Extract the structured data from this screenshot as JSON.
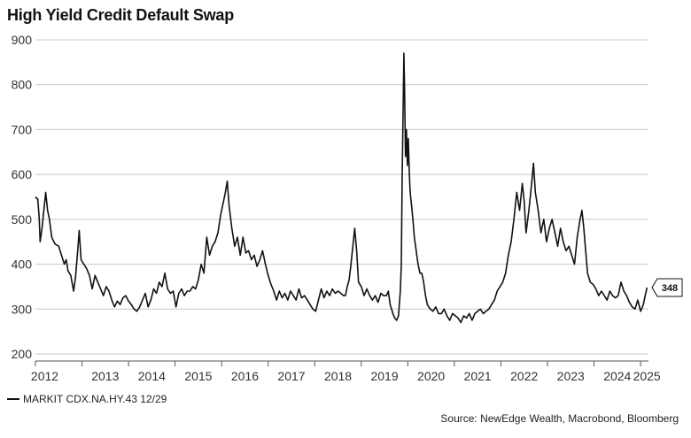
{
  "chart_data": {
    "type": "line",
    "title": "High Yield Credit Default Swap",
    "ylim": [
      200,
      900
    ],
    "yticks": [
      200,
      300,
      400,
      500,
      600,
      700,
      800,
      900
    ],
    "xlim": [
      2012.0,
      2025.17
    ],
    "xtick_labels": [
      "2012",
      "2013",
      "2014",
      "2015",
      "2016",
      "2017",
      "2018",
      "2019",
      "2020",
      "2021",
      "2022",
      "2023",
      "2024",
      "2025"
    ],
    "grid": true,
    "last_value_label": "348",
    "series": [
      {
        "name": "MARKIT CDX.NA.HY.43 12/29",
        "color": "#111111",
        "points": [
          [
            2012.0,
            550
          ],
          [
            2012.05,
            545
          ],
          [
            2012.08,
            505
          ],
          [
            2012.1,
            450
          ],
          [
            2012.14,
            480
          ],
          [
            2012.18,
            520
          ],
          [
            2012.22,
            560
          ],
          [
            2012.26,
            520
          ],
          [
            2012.3,
            500
          ],
          [
            2012.35,
            460
          ],
          [
            2012.42,
            445
          ],
          [
            2012.5,
            440
          ],
          [
            2012.56,
            420
          ],
          [
            2012.62,
            400
          ],
          [
            2012.66,
            410
          ],
          [
            2012.7,
            385
          ],
          [
            2012.76,
            375
          ],
          [
            2012.82,
            340
          ],
          [
            2012.86,
            370
          ],
          [
            2012.9,
            420
          ],
          [
            2012.94,
            475
          ],
          [
            2012.98,
            410
          ],
          [
            2013.04,
            400
          ],
          [
            2013.1,
            390
          ],
          [
            2013.16,
            375
          ],
          [
            2013.22,
            345
          ],
          [
            2013.28,
            375
          ],
          [
            2013.34,
            360
          ],
          [
            2013.4,
            345
          ],
          [
            2013.46,
            330
          ],
          [
            2013.52,
            350
          ],
          [
            2013.58,
            340
          ],
          [
            2013.64,
            320
          ],
          [
            2013.7,
            305
          ],
          [
            2013.76,
            318
          ],
          [
            2013.82,
            310
          ],
          [
            2013.88,
            325
          ],
          [
            2013.94,
            330
          ],
          [
            2014.0,
            318
          ],
          [
            2014.06,
            310
          ],
          [
            2014.12,
            300
          ],
          [
            2014.18,
            295
          ],
          [
            2014.24,
            305
          ],
          [
            2014.3,
            320
          ],
          [
            2014.36,
            335
          ],
          [
            2014.42,
            305
          ],
          [
            2014.48,
            320
          ],
          [
            2014.54,
            345
          ],
          [
            2014.6,
            335
          ],
          [
            2014.66,
            360
          ],
          [
            2014.72,
            350
          ],
          [
            2014.78,
            380
          ],
          [
            2014.84,
            345
          ],
          [
            2014.9,
            335
          ],
          [
            2014.96,
            340
          ],
          [
            2015.02,
            305
          ],
          [
            2015.08,
            335
          ],
          [
            2015.14,
            345
          ],
          [
            2015.2,
            330
          ],
          [
            2015.26,
            340
          ],
          [
            2015.32,
            340
          ],
          [
            2015.38,
            350
          ],
          [
            2015.44,
            345
          ],
          [
            2015.5,
            365
          ],
          [
            2015.56,
            400
          ],
          [
            2015.62,
            380
          ],
          [
            2015.68,
            460
          ],
          [
            2015.74,
            420
          ],
          [
            2015.8,
            440
          ],
          [
            2015.86,
            450
          ],
          [
            2015.92,
            470
          ],
          [
            2015.98,
            510
          ],
          [
            2016.04,
            540
          ],
          [
            2016.08,
            560
          ],
          [
            2016.12,
            585
          ],
          [
            2016.16,
            530
          ],
          [
            2016.22,
            480
          ],
          [
            2016.28,
            440
          ],
          [
            2016.34,
            460
          ],
          [
            2016.4,
            420
          ],
          [
            2016.46,
            460
          ],
          [
            2016.52,
            425
          ],
          [
            2016.58,
            430
          ],
          [
            2016.64,
            410
          ],
          [
            2016.7,
            420
          ],
          [
            2016.76,
            395
          ],
          [
            2016.82,
            410
          ],
          [
            2016.88,
            430
          ],
          [
            2016.94,
            400
          ],
          [
            2017.0,
            375
          ],
          [
            2017.06,
            355
          ],
          [
            2017.12,
            340
          ],
          [
            2017.18,
            320
          ],
          [
            2017.24,
            340
          ],
          [
            2017.3,
            325
          ],
          [
            2017.36,
            335
          ],
          [
            2017.42,
            320
          ],
          [
            2017.48,
            340
          ],
          [
            2017.54,
            330
          ],
          [
            2017.6,
            320
          ],
          [
            2017.66,
            345
          ],
          [
            2017.72,
            325
          ],
          [
            2017.78,
            330
          ],
          [
            2017.84,
            320
          ],
          [
            2017.9,
            310
          ],
          [
            2017.96,
            300
          ],
          [
            2018.02,
            295
          ],
          [
            2018.08,
            320
          ],
          [
            2018.14,
            345
          ],
          [
            2018.2,
            325
          ],
          [
            2018.26,
            340
          ],
          [
            2018.32,
            330
          ],
          [
            2018.38,
            345
          ],
          [
            2018.44,
            335
          ],
          [
            2018.5,
            340
          ],
          [
            2018.56,
            335
          ],
          [
            2018.62,
            330
          ],
          [
            2018.66,
            330
          ],
          [
            2018.7,
            350
          ],
          [
            2018.74,
            365
          ],
          [
            2018.78,
            400
          ],
          [
            2018.82,
            440
          ],
          [
            2018.86,
            480
          ],
          [
            2018.9,
            430
          ],
          [
            2018.94,
            360
          ],
          [
            2019.0,
            350
          ],
          [
            2019.06,
            330
          ],
          [
            2019.12,
            345
          ],
          [
            2019.18,
            330
          ],
          [
            2019.24,
            320
          ],
          [
            2019.3,
            330
          ],
          [
            2019.36,
            315
          ],
          [
            2019.42,
            335
          ],
          [
            2019.48,
            330
          ],
          [
            2019.54,
            330
          ],
          [
            2019.58,
            340
          ],
          [
            2019.62,
            310
          ],
          [
            2019.68,
            290
          ],
          [
            2019.72,
            280
          ],
          [
            2019.76,
            275
          ],
          [
            2019.8,
            285
          ],
          [
            2019.84,
            340
          ],
          [
            2019.86,
            400
          ],
          [
            2019.88,
            600
          ],
          [
            2019.9,
            750
          ],
          [
            2019.915,
            870
          ],
          [
            2019.93,
            790
          ],
          [
            2019.95,
            640
          ],
          [
            2019.97,
            700
          ],
          [
            2019.99,
            620
          ],
          [
            2020.01,
            680
          ],
          [
            2020.03,
            610
          ],
          [
            2020.05,
            560
          ],
          [
            2020.08,
            530
          ],
          [
            2020.11,
            500
          ],
          [
            2020.14,
            460
          ],
          [
            2020.18,
            430
          ],
          [
            2020.22,
            400
          ],
          [
            2020.26,
            380
          ],
          [
            2020.3,
            380
          ],
          [
            2020.34,
            360
          ],
          [
            2020.38,
            330
          ],
          [
            2020.42,
            310
          ],
          [
            2020.48,
            300
          ],
          [
            2020.54,
            295
          ],
          [
            2020.6,
            305
          ],
          [
            2020.66,
            290
          ],
          [
            2020.72,
            290
          ],
          [
            2020.78,
            300
          ],
          [
            2020.84,
            285
          ],
          [
            2020.9,
            275
          ],
          [
            2020.96,
            290
          ],
          [
            2021.02,
            285
          ],
          [
            2021.08,
            280
          ],
          [
            2021.14,
            270
          ],
          [
            2021.2,
            285
          ],
          [
            2021.26,
            280
          ],
          [
            2021.32,
            290
          ],
          [
            2021.38,
            275
          ],
          [
            2021.44,
            290
          ],
          [
            2021.5,
            295
          ],
          [
            2021.56,
            300
          ],
          [
            2021.62,
            290
          ],
          [
            2021.68,
            295
          ],
          [
            2021.74,
            300
          ],
          [
            2021.8,
            310
          ],
          [
            2021.86,
            320
          ],
          [
            2021.92,
            340
          ],
          [
            2021.98,
            350
          ],
          [
            2022.04,
            360
          ],
          [
            2022.1,
            380
          ],
          [
            2022.16,
            420
          ],
          [
            2022.22,
            450
          ],
          [
            2022.28,
            500
          ],
          [
            2022.34,
            560
          ],
          [
            2022.4,
            520
          ],
          [
            2022.46,
            580
          ],
          [
            2022.5,
            540
          ],
          [
            2022.54,
            470
          ],
          [
            2022.6,
            520
          ],
          [
            2022.66,
            580
          ],
          [
            2022.7,
            625
          ],
          [
            2022.74,
            560
          ],
          [
            2022.8,
            520
          ],
          [
            2022.86,
            470
          ],
          [
            2022.92,
            500
          ],
          [
            2022.98,
            450
          ],
          [
            2023.04,
            480
          ],
          [
            2023.1,
            500
          ],
          [
            2023.16,
            470
          ],
          [
            2023.22,
            440
          ],
          [
            2023.28,
            480
          ],
          [
            2023.34,
            450
          ],
          [
            2023.4,
            430
          ],
          [
            2023.46,
            440
          ],
          [
            2023.52,
            420
          ],
          [
            2023.58,
            400
          ],
          [
            2023.64,
            460
          ],
          [
            2023.7,
            500
          ],
          [
            2023.74,
            520
          ],
          [
            2023.78,
            480
          ],
          [
            2023.82,
            430
          ],
          [
            2023.86,
            380
          ],
          [
            2023.92,
            360
          ],
          [
            2023.98,
            355
          ],
          [
            2024.04,
            345
          ],
          [
            2024.1,
            330
          ],
          [
            2024.16,
            340
          ],
          [
            2024.22,
            330
          ],
          [
            2024.28,
            320
          ],
          [
            2024.34,
            340
          ],
          [
            2024.4,
            330
          ],
          [
            2024.46,
            325
          ],
          [
            2024.52,
            330
          ],
          [
            2024.58,
            360
          ],
          [
            2024.64,
            340
          ],
          [
            2024.7,
            330
          ],
          [
            2024.76,
            315
          ],
          [
            2024.82,
            305
          ],
          [
            2024.88,
            300
          ],
          [
            2024.94,
            320
          ],
          [
            2025.0,
            295
          ],
          [
            2025.06,
            310
          ],
          [
            2025.1,
            330
          ],
          [
            2025.14,
            348
          ]
        ]
      }
    ]
  },
  "legend": {
    "label": "MARKIT CDX.NA.HY.43 12/29"
  },
  "footer": {
    "source": "Source: NewEdge Wealth, Macrobond, Bloomberg"
  }
}
